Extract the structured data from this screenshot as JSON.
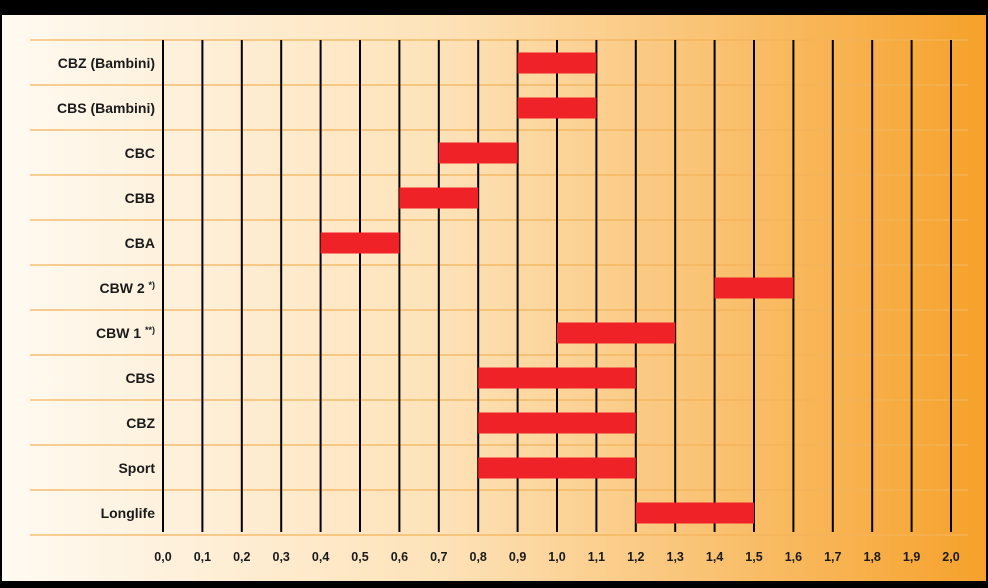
{
  "colors": {
    "bar": "#ee2227",
    "background_left": "#fffaf2",
    "background_right": "#f6a12a",
    "row_line": "#f3b35a",
    "grid": "#000000",
    "frame": "#000000"
  },
  "chart_data": {
    "type": "bar",
    "orientation": "horizontal-range",
    "title": "",
    "xlabel": "",
    "ylabel": "",
    "xlim": [
      0.0,
      2.0
    ],
    "x_ticks": [
      "0,0",
      "0,1",
      "0,2",
      "0,3",
      "0,4",
      "0,5",
      "0,6",
      "0,7",
      "0,8",
      "0,9",
      "1,0",
      "1,1",
      "1,2",
      "1,3",
      "1,4",
      "1,5",
      "1,6",
      "1,7",
      "1,8",
      "1,9",
      "2,0"
    ],
    "grid": true,
    "categories": [
      {
        "label": "CBZ (Bambini)",
        "note": ""
      },
      {
        "label": "CBS (Bambini)",
        "note": ""
      },
      {
        "label": "CBC",
        "note": ""
      },
      {
        "label": "CBB",
        "note": ""
      },
      {
        "label": "CBA",
        "note": ""
      },
      {
        "label": "CBW 2 ",
        "note": "*)"
      },
      {
        "label": "CBW 1 ",
        "note": "**)"
      },
      {
        "label": "CBS",
        "note": ""
      },
      {
        "label": "CBZ",
        "note": ""
      },
      {
        "label": "Sport",
        "note": ""
      },
      {
        "label": "Longlife",
        "note": ""
      }
    ],
    "ranges": [
      [
        0.9,
        1.1
      ],
      [
        0.9,
        1.1
      ],
      [
        0.7,
        0.9
      ],
      [
        0.6,
        0.8
      ],
      [
        0.4,
        0.6
      ],
      [
        1.4,
        1.6
      ],
      [
        1.0,
        1.3
      ],
      [
        0.8,
        1.2
      ],
      [
        0.8,
        1.2
      ],
      [
        0.8,
        1.2
      ],
      [
        1.2,
        1.5
      ]
    ]
  }
}
